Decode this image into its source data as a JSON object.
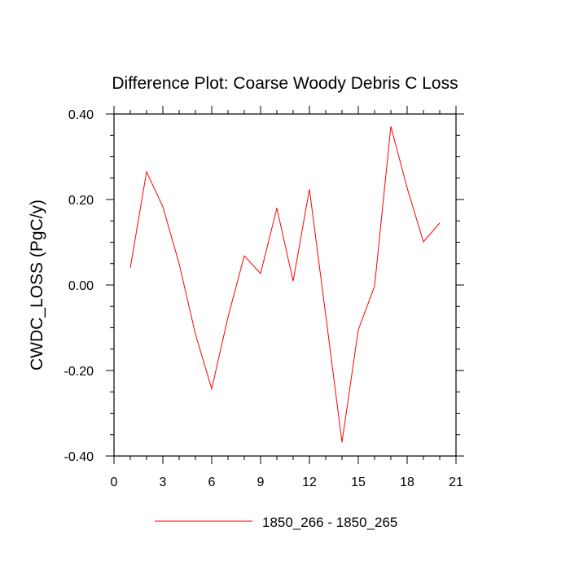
{
  "chart_data": {
    "type": "line",
    "title": "Difference Plot: Coarse Woody Debris C Loss",
    "xlabel": "",
    "ylabel": "CWDC_LOSS  (PgC/y)",
    "xlim": [
      0,
      21
    ],
    "ylim": [
      -0.4,
      0.4
    ],
    "x_ticks": [
      0,
      3,
      6,
      9,
      12,
      15,
      18,
      21
    ],
    "x_tick_labels": [
      "0",
      "3",
      "6",
      "9",
      "12",
      "15",
      "18",
      "21"
    ],
    "y_ticks": [
      -0.4,
      -0.2,
      0.0,
      0.2,
      0.4
    ],
    "y_tick_labels": [
      "-0.40",
      "-0.20",
      "0.00",
      "0.20",
      "0.40"
    ],
    "grid": false,
    "legend_position": "bottom-center",
    "series": [
      {
        "name": "1850_266 - 1850_265",
        "color": "#ff0000",
        "x": [
          1,
          2,
          3,
          4,
          5,
          6,
          7,
          8,
          9,
          10,
          11,
          12,
          13,
          14,
          15,
          16,
          17,
          18,
          19,
          20
        ],
        "y": [
          0.04,
          0.265,
          0.183,
          0.05,
          -0.115,
          -0.243,
          -0.075,
          0.068,
          0.027,
          0.18,
          0.009,
          0.224,
          -0.07,
          -0.368,
          -0.105,
          -0.003,
          0.371,
          0.227,
          0.101,
          0.145
        ]
      }
    ]
  }
}
